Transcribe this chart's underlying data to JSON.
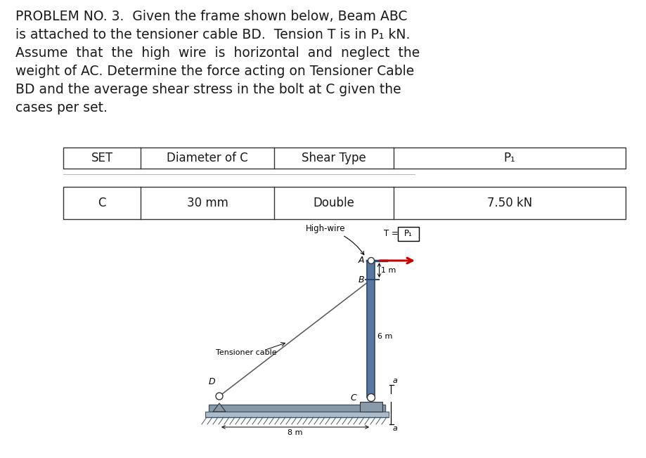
{
  "title_lines": [
    "PROBLEM NO. 3.  Given the frame shown below, Beam ABC",
    "is attached to the tensioner cable BD.  Tension T is in P₁ kN.",
    "Assume  that  the  high  wire  is  horizontal  and  neglect  the",
    "weight of AC. Determine the force acting on Tensioner Cable",
    "BD and the average shear stress in the bolt at C given the",
    "cases per set."
  ],
  "table_headers": [
    "SET",
    "Diameter of C",
    "Shear Type",
    "P₁"
  ],
  "table_row": [
    "C",
    "30 mm",
    "Double",
    "7.50 kN"
  ],
  "diagram_labels": {
    "high_wire": "High-wire",
    "tensioner_cable": "Tensioner cable",
    "point_A": "A",
    "point_B": "B",
    "point_C": "C",
    "point_D": "D",
    "dim_1m": "1 m",
    "dim_6m": "6 m",
    "dim_8m": "8 m",
    "section_a": "a",
    "T_label": "T =",
    "P1_label": "P₁"
  },
  "colors": {
    "text": "#1a1a1a",
    "beam_fill": "#5878a0",
    "beam_border": "#2a4a70",
    "cable_line": "#555555",
    "ground_fill": "#8899aa",
    "ground_light": "#aabbcc",
    "arrow_red": "#cc0000",
    "table_border": "#333333",
    "background": "#ffffff",
    "pin_fill": "white",
    "pin_border": "#333333"
  },
  "fontsize_body": 13.5,
  "fontsize_table_header": 12,
  "fontsize_table_row": 12,
  "fontsize_diagram": 8.5
}
